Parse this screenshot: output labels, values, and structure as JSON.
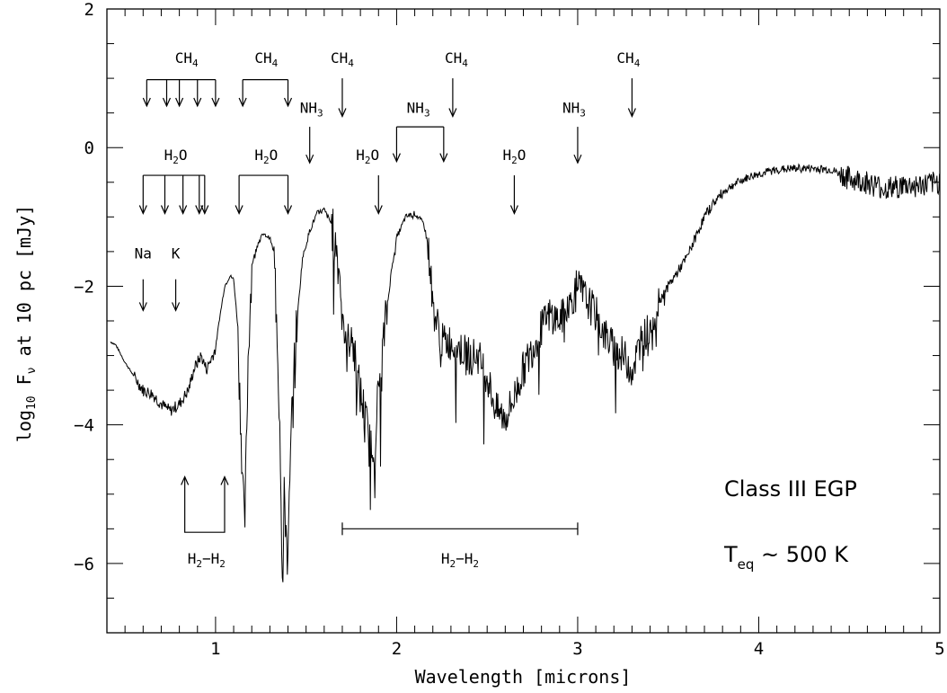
{
  "chart_data": {
    "type": "line",
    "title": "",
    "xlabel": "Wavelength  [microns]",
    "ylabel": {
      "pre": "log",
      "sub": "10",
      "mid": " F",
      "nu": "ν",
      "post": " at 10 pc [mJy]"
    },
    "xlim": [
      0.4,
      5.0
    ],
    "ylim": [
      -7.0,
      2.0
    ],
    "x_ticks": [
      {
        "v": 1,
        "label": "1"
      },
      {
        "v": 2,
        "label": "2"
      },
      {
        "v": 3,
        "label": "3"
      },
      {
        "v": 4,
        "label": "4"
      },
      {
        "v": 5,
        "label": "5"
      }
    ],
    "y_ticks": [
      {
        "v": 2,
        "label": "2"
      },
      {
        "v": 0,
        "label": "0"
      },
      {
        "v": -2,
        "label": "−2"
      },
      {
        "v": -4,
        "label": "−4"
      },
      {
        "v": -6,
        "label": "−6"
      }
    ],
    "series": [
      {
        "points": [
          [
            0.42,
            -2.8
          ],
          [
            0.45,
            -2.85
          ],
          [
            0.5,
            -3.1
          ],
          [
            0.55,
            -3.3
          ],
          [
            0.6,
            -3.5
          ],
          [
            0.65,
            -3.55
          ],
          [
            0.7,
            -3.7
          ],
          [
            0.75,
            -3.8
          ],
          [
            0.8,
            -3.7
          ],
          [
            0.85,
            -3.5
          ],
          [
            0.88,
            -3.2
          ],
          [
            0.92,
            -3.0
          ],
          [
            0.95,
            -3.2
          ],
          [
            1.0,
            -2.9
          ],
          [
            1.02,
            -2.5
          ],
          [
            1.05,
            -2.0
          ],
          [
            1.08,
            -1.85
          ],
          [
            1.1,
            -1.9
          ],
          [
            1.12,
            -2.5
          ],
          [
            1.14,
            -4.0
          ],
          [
            1.16,
            -5.6
          ],
          [
            1.18,
            -3.0
          ],
          [
            1.2,
            -1.7
          ],
          [
            1.23,
            -1.4
          ],
          [
            1.26,
            -1.25
          ],
          [
            1.3,
            -1.3
          ],
          [
            1.32,
            -1.5
          ],
          [
            1.34,
            -2.5
          ],
          [
            1.36,
            -4.5
          ],
          [
            1.37,
            -6.6
          ],
          [
            1.38,
            -5.0
          ],
          [
            1.4,
            -6.0
          ],
          [
            1.42,
            -4.0
          ],
          [
            1.45,
            -2.5
          ],
          [
            1.48,
            -1.6
          ],
          [
            1.52,
            -1.2
          ],
          [
            1.56,
            -0.95
          ],
          [
            1.6,
            -0.9
          ],
          [
            1.64,
            -1.1
          ],
          [
            1.67,
            -1.5
          ],
          [
            1.7,
            -2.2
          ],
          [
            1.72,
            -3.0
          ],
          [
            1.75,
            -2.6
          ],
          [
            1.78,
            -3.3
          ],
          [
            1.82,
            -3.8
          ],
          [
            1.85,
            -4.3
          ],
          [
            1.88,
            -4.2
          ],
          [
            1.9,
            -3.5
          ],
          [
            1.94,
            -2.5
          ],
          [
            1.97,
            -1.8
          ],
          [
            2.0,
            -1.3
          ],
          [
            2.05,
            -1.0
          ],
          [
            2.1,
            -0.95
          ],
          [
            2.15,
            -1.1
          ],
          [
            2.18,
            -1.5
          ],
          [
            2.2,
            -2.3
          ],
          [
            2.25,
            -2.8
          ],
          [
            2.3,
            -2.8
          ],
          [
            2.35,
            -2.9
          ],
          [
            2.4,
            -3.0
          ],
          [
            2.45,
            -3.0
          ],
          [
            2.5,
            -3.3
          ],
          [
            2.55,
            -3.8
          ],
          [
            2.6,
            -3.9
          ],
          [
            2.65,
            -3.6
          ],
          [
            2.7,
            -3.2
          ],
          [
            2.75,
            -2.9
          ],
          [
            2.8,
            -2.6
          ],
          [
            2.85,
            -2.4
          ],
          [
            2.9,
            -2.5
          ],
          [
            2.95,
            -2.3
          ],
          [
            3.0,
            -2.0
          ],
          [
            3.05,
            -2.2
          ],
          [
            3.1,
            -2.4
          ],
          [
            3.15,
            -2.7
          ],
          [
            3.2,
            -2.9
          ],
          [
            3.25,
            -3.0
          ],
          [
            3.3,
            -3.2
          ],
          [
            3.35,
            -2.8
          ],
          [
            3.4,
            -2.6
          ],
          [
            3.45,
            -2.2
          ],
          [
            3.5,
            -2.0
          ],
          [
            3.55,
            -1.8
          ],
          [
            3.6,
            -1.6
          ],
          [
            3.65,
            -1.3
          ],
          [
            3.7,
            -1.0
          ],
          [
            3.75,
            -0.8
          ],
          [
            3.8,
            -0.65
          ],
          [
            3.85,
            -0.55
          ],
          [
            3.9,
            -0.48
          ],
          [
            3.95,
            -0.42
          ],
          [
            4.0,
            -0.38
          ],
          [
            4.1,
            -0.32
          ],
          [
            4.2,
            -0.3
          ],
          [
            4.3,
            -0.3
          ],
          [
            4.4,
            -0.32
          ],
          [
            4.5,
            -0.45
          ],
          [
            4.6,
            -0.5
          ],
          [
            4.7,
            -0.6
          ],
          [
            4.8,
            -0.55
          ],
          [
            4.9,
            -0.55
          ],
          [
            5.0,
            -0.5
          ]
        ]
      }
    ]
  },
  "annotations": {
    "text_labels": [
      {
        "id": "ch4-label-1",
        "main": "CH",
        "sub": "4",
        "x": 0.84,
        "y": 1.22
      },
      {
        "id": "ch4-label-2",
        "main": "CH",
        "sub": "4",
        "x": 1.28,
        "y": 1.22
      },
      {
        "id": "ch4-label-3",
        "main": "CH",
        "sub": "4",
        "x": 1.7,
        "y": 1.22
      },
      {
        "id": "ch4-label-4",
        "main": "CH",
        "sub": "4",
        "x": 2.33,
        "y": 1.22
      },
      {
        "id": "ch4-label-5",
        "main": "CH",
        "sub": "4",
        "x": 3.28,
        "y": 1.22
      },
      {
        "id": "nh3-label-1",
        "main": "NH",
        "sub": "3",
        "x": 1.53,
        "y": 0.5
      },
      {
        "id": "nh3-label-2",
        "main": "NH",
        "sub": "3",
        "x": 2.12,
        "y": 0.5
      },
      {
        "id": "nh3-label-3",
        "main": "NH",
        "sub": "3",
        "x": 2.98,
        "y": 0.5
      },
      {
        "id": "h2o-label-1",
        "main": "H",
        "sub": "2",
        "tail": "O",
        "x": 0.78,
        "y": -0.18
      },
      {
        "id": "h2o-label-2",
        "main": "H",
        "sub": "2",
        "tail": "O",
        "x": 1.28,
        "y": -0.18
      },
      {
        "id": "h2o-label-3",
        "main": "H",
        "sub": "2",
        "tail": "O",
        "x": 1.84,
        "y": -0.18
      },
      {
        "id": "h2o-label-4",
        "main": "H",
        "sub": "2",
        "tail": "O",
        "x": 2.65,
        "y": -0.18
      },
      {
        "id": "na-label",
        "main": "Na",
        "sub": "",
        "x": 0.6,
        "y": -1.6
      },
      {
        "id": "k-label",
        "main": "K",
        "sub": "",
        "x": 0.78,
        "y": -1.6
      },
      {
        "id": "h2h2-label-1",
        "main": "H",
        "sub": "2",
        "tail": "−H",
        "sub2": "2",
        "x": 0.95,
        "y": -6.0
      },
      {
        "id": "h2h2-label-2",
        "main": "H",
        "sub": "2",
        "tail": "−H",
        "sub2": "2",
        "x": 2.35,
        "y": -6.0
      }
    ],
    "class_label": "Class III EGP",
    "teq_label": {
      "pre": "T",
      "sub": "eq",
      "post": " ~ 500 K"
    },
    "brackets": [
      {
        "id": "ch4-bracket-1",
        "xs": [
          0.62,
          0.73,
          0.8,
          0.9,
          1.0
        ],
        "y": 0.98,
        "tip": 0.6
      },
      {
        "id": "ch4-bracket-2",
        "xs": [
          1.15,
          1.4
        ],
        "y": 0.98,
        "tip": 0.6
      },
      {
        "id": "h2o-bracket-1",
        "xs": [
          0.6,
          0.72,
          0.82,
          0.91,
          0.94
        ],
        "y": -0.4,
        "tip": -0.95
      },
      {
        "id": "h2o-bracket-2",
        "xs": [
          1.13,
          1.4
        ],
        "y": -0.4,
        "tip": -0.95
      },
      {
        "id": "nh3-bracket-1",
        "xs": [
          2.0,
          2.26
        ],
        "y": 0.3,
        "tip": -0.2
      }
    ],
    "arrows": [
      {
        "id": "ch4-arrow-3",
        "x": 1.7,
        "y0": 1.0,
        "y1": 0.45
      },
      {
        "id": "ch4-arrow-4",
        "x": 2.31,
        "y0": 1.0,
        "y1": 0.45
      },
      {
        "id": "ch4-arrow-5",
        "x": 3.3,
        "y0": 1.0,
        "y1": 0.45
      },
      {
        "id": "nh3-arrow-1",
        "x": 1.52,
        "y0": 0.3,
        "y1": -0.22
      },
      {
        "id": "nh3-arrow-3",
        "x": 3.0,
        "y0": 0.3,
        "y1": -0.22
      },
      {
        "id": "h2o-arrow-3",
        "x": 1.9,
        "y0": -0.4,
        "y1": -0.95
      },
      {
        "id": "h2o-arrow-4",
        "x": 2.65,
        "y0": -0.4,
        "y1": -0.95
      },
      {
        "id": "na-arrow",
        "x": 0.6,
        "y0": -1.9,
        "y1": -2.35
      },
      {
        "id": "k-arrow",
        "x": 0.78,
        "y0": -1.9,
        "y1": -2.35
      }
    ],
    "h2h2_bracket_up": {
      "x0": 0.83,
      "x1": 1.05,
      "ybase": -5.55,
      "ytip": -4.75
    },
    "h2h2_range": {
      "x0": 1.7,
      "x1": 3.0,
      "y": -5.5
    }
  }
}
